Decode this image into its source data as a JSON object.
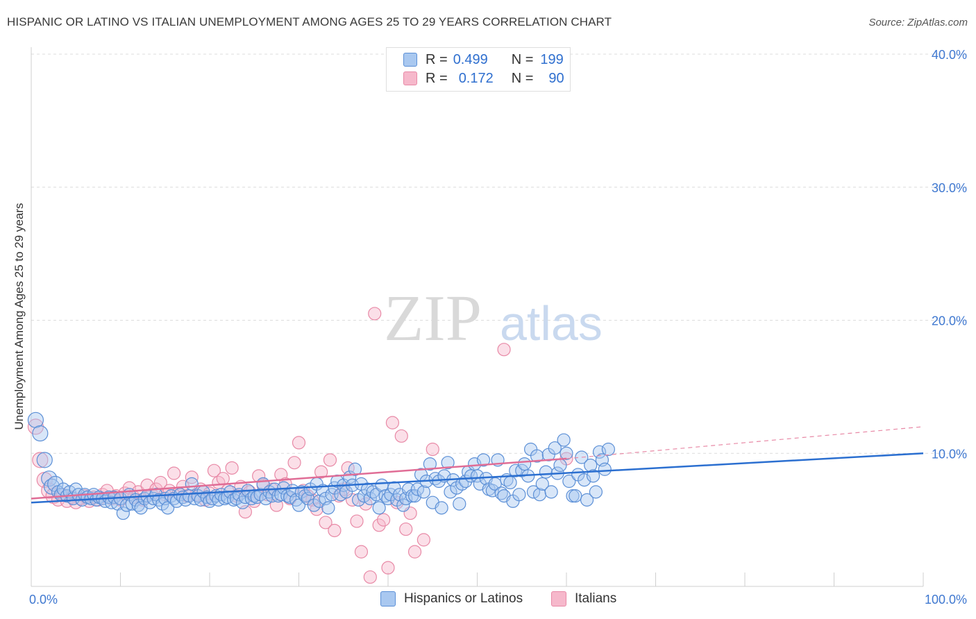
{
  "title": "HISPANIC OR LATINO VS ITALIAN UNEMPLOYMENT AMONG AGES 25 TO 29 YEARS CORRELATION CHART",
  "source": "Source: ZipAtlas.com",
  "watermark": {
    "zip": "ZIP",
    "atlas": "atlas"
  },
  "legend": {
    "rows": [
      {
        "r_label": "R =",
        "r_value": "0.499",
        "n_label": "N =",
        "n_value": "199"
      },
      {
        "r_label": "R =",
        "r_value": "0.172",
        "n_label": "N =",
        "n_value": "90"
      }
    ]
  },
  "bottom_legend": {
    "series1": "Hispanics or Latinos",
    "series2": "Italians"
  },
  "colors": {
    "blue_fill": "#a9c8f0",
    "blue_stroke": "#5b8fd6",
    "blue_line": "#2b6fd0",
    "pink_fill": "#f6b8cb",
    "pink_stroke": "#e889a6",
    "pink_line": "#e06d96",
    "axis_text": "#3f78d0",
    "grid": "#dcdcdc"
  },
  "chart_data": {
    "type": "scatter",
    "title": "HISPANIC OR LATINO VS ITALIAN UNEMPLOYMENT AMONG AGES 25 TO 29 YEARS CORRELATION CHART",
    "xlabel": "",
    "ylabel": "Unemployment Among Ages 25 to 29 years",
    "xlim": [
      0,
      100
    ],
    "ylim": [
      0,
      40
    ],
    "x_tick_labels": [
      {
        "value": 0,
        "label": "0.0%"
      },
      {
        "value": 100,
        "label": "100.0%"
      }
    ],
    "y_tick_labels": [
      {
        "value": 10,
        "label": "10.0%"
      },
      {
        "value": 20,
        "label": "20.0%"
      },
      {
        "value": 30,
        "label": "30.0%"
      },
      {
        "value": 40,
        "label": "40.0%"
      }
    ],
    "x_minor_ticks": [
      0,
      10,
      20,
      30,
      40,
      50,
      60,
      70,
      80,
      90,
      100
    ],
    "grid": true,
    "legend_position": "top-center",
    "series": [
      {
        "name": "Hispanics or Latinos",
        "R": 0.499,
        "N": 199,
        "trend": {
          "x": [
            0,
            100
          ],
          "y": [
            6.3,
            10.0
          ]
        },
        "points": [
          [
            0.5,
            12.5
          ],
          [
            1,
            11.5
          ],
          [
            1.5,
            9.5
          ],
          [
            2,
            8.1
          ],
          [
            2.3,
            7.5
          ],
          [
            2.7,
            7.7
          ],
          [
            3,
            7.1
          ],
          [
            3.3,
            6.9
          ],
          [
            3.6,
            7.3
          ],
          [
            4,
            6.8
          ],
          [
            4.3,
            7.1
          ],
          [
            4.7,
            6.6
          ],
          [
            5,
            7.3
          ],
          [
            5.3,
            6.9
          ],
          [
            5.7,
            6.5
          ],
          [
            6,
            6.9
          ],
          [
            6.3,
            6.7
          ],
          [
            6.7,
            6.6
          ],
          [
            7,
            6.9
          ],
          [
            7.3,
            6.5
          ],
          [
            7.6,
            6.7
          ],
          [
            8,
            6.6
          ],
          [
            8.3,
            6.4
          ],
          [
            8.7,
            6.7
          ],
          [
            9,
            6.3
          ],
          [
            9.3,
            6.7
          ],
          [
            9.7,
            6.2
          ],
          [
            10,
            6.6
          ],
          [
            10.3,
            5.5
          ],
          [
            10.7,
            6.1
          ],
          [
            11,
            6.9
          ],
          [
            11.3,
            6.2
          ],
          [
            11.7,
            6.5
          ],
          [
            12,
            6.1
          ],
          [
            12.3,
            5.9
          ],
          [
            12.7,
            6.6
          ],
          [
            13,
            6.8
          ],
          [
            13.3,
            6.3
          ],
          [
            13.7,
            6.6
          ],
          [
            14,
            6.9
          ],
          [
            14.3,
            6.5
          ],
          [
            14.7,
            6.2
          ],
          [
            15,
            6.6
          ],
          [
            15.3,
            5.9
          ],
          [
            15.7,
            6.8
          ],
          [
            16,
            6.6
          ],
          [
            16.3,
            6.4
          ],
          [
            16.7,
            6.9
          ],
          [
            17,
            6.7
          ],
          [
            17.3,
            6.5
          ],
          [
            17.7,
            6.8
          ],
          [
            18,
            7.7
          ],
          [
            18.3,
            6.6
          ],
          [
            18.7,
            6.8
          ],
          [
            19,
            6.5
          ],
          [
            19.3,
            7.1
          ],
          [
            19.7,
            6.7
          ],
          [
            20,
            6.4
          ],
          [
            20.3,
            6.6
          ],
          [
            20.7,
            6.8
          ],
          [
            21,
            6.5
          ],
          [
            21.3,
            6.9
          ],
          [
            21.7,
            6.6
          ],
          [
            22,
            6.7
          ],
          [
            22.3,
            7.1
          ],
          [
            22.7,
            6.5
          ],
          [
            23,
            6.6
          ],
          [
            23.3,
            6.9
          ],
          [
            23.7,
            6.3
          ],
          [
            24,
            6.7
          ],
          [
            24.3,
            7.2
          ],
          [
            24.7,
            6.6
          ],
          [
            25,
            6.8
          ],
          [
            25.3,
            6.7
          ],
          [
            25.7,
            6.9
          ],
          [
            26,
            7.7
          ],
          [
            26.3,
            6.6
          ],
          [
            26.7,
            7.1
          ],
          [
            27,
            6.8
          ],
          [
            27.3,
            7.3
          ],
          [
            27.7,
            6.8
          ],
          [
            28,
            6.9
          ],
          [
            28.3,
            7.4
          ],
          [
            28.7,
            6.8
          ],
          [
            29,
            6.7
          ],
          [
            29.3,
            7.2
          ],
          [
            29.7,
            6.5
          ],
          [
            30,
            6.1
          ],
          [
            30.3,
            7.1
          ],
          [
            30.7,
            6.8
          ],
          [
            31,
            6.6
          ],
          [
            31.3,
            7.3
          ],
          [
            31.7,
            6.1
          ],
          [
            32,
            7.7
          ],
          [
            32.3,
            6.4
          ],
          [
            32.7,
            7.2
          ],
          [
            33,
            6.6
          ],
          [
            33.3,
            5.9
          ],
          [
            33.7,
            6.9
          ],
          [
            34,
            7.4
          ],
          [
            34.3,
            7.9
          ],
          [
            34.7,
            6.9
          ],
          [
            35,
            7.6
          ],
          [
            35.3,
            7.1
          ],
          [
            35.7,
            8.2
          ],
          [
            36,
            7.6
          ],
          [
            36.3,
            8.8
          ],
          [
            36.7,
            6.5
          ],
          [
            37,
            7.7
          ],
          [
            37.3,
            6.8
          ],
          [
            37.7,
            7.3
          ],
          [
            38,
            6.6
          ],
          [
            38.3,
            7.1
          ],
          [
            38.7,
            6.9
          ],
          [
            39,
            5.9
          ],
          [
            39.3,
            7.6
          ],
          [
            39.7,
            6.8
          ],
          [
            40,
            6.6
          ],
          [
            40.3,
            6.9
          ],
          [
            40.7,
            7.4
          ],
          [
            41,
            6.5
          ],
          [
            41.3,
            6.9
          ],
          [
            41.7,
            6.1
          ],
          [
            42,
            6.6
          ],
          [
            42.3,
            7.3
          ],
          [
            42.7,
            6.8
          ],
          [
            43,
            6.8
          ],
          [
            43.3,
            7.3
          ],
          [
            43.7,
            8.4
          ],
          [
            44,
            7.1
          ],
          [
            44.3,
            7.9
          ],
          [
            44.7,
            9.2
          ],
          [
            45,
            6.3
          ],
          [
            45.3,
            8.1
          ],
          [
            45.7,
            7.9
          ],
          [
            46,
            5.9
          ],
          [
            46.3,
            8.3
          ],
          [
            46.7,
            9.3
          ],
          [
            47,
            7.1
          ],
          [
            47.3,
            8.0
          ],
          [
            47.7,
            7.4
          ],
          [
            48,
            6.2
          ],
          [
            48.3,
            7.7
          ],
          [
            48.7,
            7.9
          ],
          [
            49,
            8.6
          ],
          [
            49.3,
            8.3
          ],
          [
            49.7,
            9.2
          ],
          [
            50,
            8.3
          ],
          [
            50.3,
            7.7
          ],
          [
            50.7,
            9.5
          ],
          [
            51,
            8.1
          ],
          [
            51.3,
            7.3
          ],
          [
            51.7,
            7.2
          ],
          [
            52,
            7.7
          ],
          [
            52.3,
            9.5
          ],
          [
            52.7,
            7.0
          ],
          [
            53,
            6.8
          ],
          [
            53.3,
            8.0
          ],
          [
            53.7,
            7.8
          ],
          [
            54,
            6.4
          ],
          [
            54.3,
            8.7
          ],
          [
            54.7,
            6.9
          ],
          [
            55,
            8.7
          ],
          [
            55.3,
            9.2
          ],
          [
            55.7,
            8.3
          ],
          [
            56,
            10.3
          ],
          [
            56.3,
            7.1
          ],
          [
            56.7,
            9.8
          ],
          [
            57,
            6.9
          ],
          [
            57.3,
            7.7
          ],
          [
            57.7,
            8.6
          ],
          [
            58,
            9.9
          ],
          [
            58.3,
            7.1
          ],
          [
            58.7,
            10.4
          ],
          [
            59,
            8.5
          ],
          [
            59.3,
            9.1
          ],
          [
            59.7,
            11.0
          ],
          [
            60,
            10.0
          ],
          [
            60.3,
            7.9
          ],
          [
            60.7,
            6.8
          ],
          [
            61,
            6.8
          ],
          [
            61.3,
            8.4
          ],
          [
            61.7,
            9.7
          ],
          [
            62,
            8.0
          ],
          [
            62.3,
            6.5
          ],
          [
            62.7,
            9.1
          ],
          [
            63,
            8.3
          ],
          [
            63.3,
            7.1
          ],
          [
            63.7,
            10.1
          ],
          [
            64,
            9.5
          ],
          [
            64.3,
            8.8
          ],
          [
            64.7,
            10.3
          ]
        ]
      },
      {
        "name": "Italians",
        "R": 0.172,
        "N": 90,
        "trend": {
          "x": [
            0,
            60
          ],
          "y": [
            6.6,
            9.6
          ]
        },
        "trend_extension": {
          "x": [
            60,
            100
          ],
          "y": [
            9.6,
            12.0
          ]
        },
        "points": [
          [
            0.5,
            12.0
          ],
          [
            1,
            9.5
          ],
          [
            1.5,
            8.0
          ],
          [
            2,
            7.2
          ],
          [
            2.5,
            6.8
          ],
          [
            3,
            6.5
          ],
          [
            3.5,
            6.9
          ],
          [
            4,
            6.4
          ],
          [
            4.5,
            6.7
          ],
          [
            5,
            6.3
          ],
          [
            5.5,
            6.6
          ],
          [
            6,
            6.8
          ],
          [
            6.5,
            6.4
          ],
          [
            7,
            6.7
          ],
          [
            7.5,
            6.5
          ],
          [
            8,
            6.9
          ],
          [
            8.5,
            7.2
          ],
          [
            9,
            6.6
          ],
          [
            9.5,
            6.8
          ],
          [
            10,
            6.5
          ],
          [
            10.5,
            7.0
          ],
          [
            11,
            7.4
          ],
          [
            11.5,
            6.7
          ],
          [
            12,
            7.1
          ],
          [
            12.5,
            6.5
          ],
          [
            13,
            7.6
          ],
          [
            13.5,
            6.9
          ],
          [
            14,
            7.3
          ],
          [
            14.5,
            7.8
          ],
          [
            15,
            6.9
          ],
          [
            15.5,
            7.2
          ],
          [
            16,
            8.5
          ],
          [
            16.5,
            7.0
          ],
          [
            17,
            7.5
          ],
          [
            17.5,
            6.8
          ],
          [
            18,
            8.2
          ],
          [
            18.5,
            6.9
          ],
          [
            19,
            7.3
          ],
          [
            19.5,
            6.5
          ],
          [
            20,
            7.0
          ],
          [
            20.5,
            8.7
          ],
          [
            21,
            7.8
          ],
          [
            21.5,
            8.1
          ],
          [
            22,
            7.2
          ],
          [
            22.5,
            8.9
          ],
          [
            23,
            6.8
          ],
          [
            23.5,
            7.5
          ],
          [
            24,
            5.6
          ],
          [
            24.5,
            7.1
          ],
          [
            25,
            6.4
          ],
          [
            25.5,
            8.3
          ],
          [
            26,
            7.6
          ],
          [
            26.5,
            6.9
          ],
          [
            27,
            7.3
          ],
          [
            27.5,
            6.1
          ],
          [
            28,
            8.4
          ],
          [
            28.5,
            7.7
          ],
          [
            29,
            6.6
          ],
          [
            29.5,
            9.3
          ],
          [
            30,
            10.8
          ],
          [
            30.5,
            7.2
          ],
          [
            31,
            6.8
          ],
          [
            31.5,
            6.5
          ],
          [
            32,
            5.8
          ],
          [
            32.5,
            8.6
          ],
          [
            33,
            4.8
          ],
          [
            33.5,
            9.5
          ],
          [
            34,
            4.2
          ],
          [
            34.5,
            6.8
          ],
          [
            35,
            7.3
          ],
          [
            35.5,
            8.9
          ],
          [
            36,
            6.5
          ],
          [
            36.5,
            4.9
          ],
          [
            37,
            2.6
          ],
          [
            37.5,
            6.2
          ],
          [
            38,
            0.7
          ],
          [
            38.5,
            20.5
          ],
          [
            39,
            4.6
          ],
          [
            39.5,
            5.0
          ],
          [
            40,
            1.4
          ],
          [
            40.5,
            12.3
          ],
          [
            41,
            6.3
          ],
          [
            41.5,
            11.3
          ],
          [
            42,
            4.3
          ],
          [
            42.5,
            5.5
          ],
          [
            43,
            2.6
          ],
          [
            44,
            3.5
          ],
          [
            45,
            10.3
          ],
          [
            53,
            17.8
          ],
          [
            60,
            9.6
          ]
        ]
      }
    ]
  }
}
